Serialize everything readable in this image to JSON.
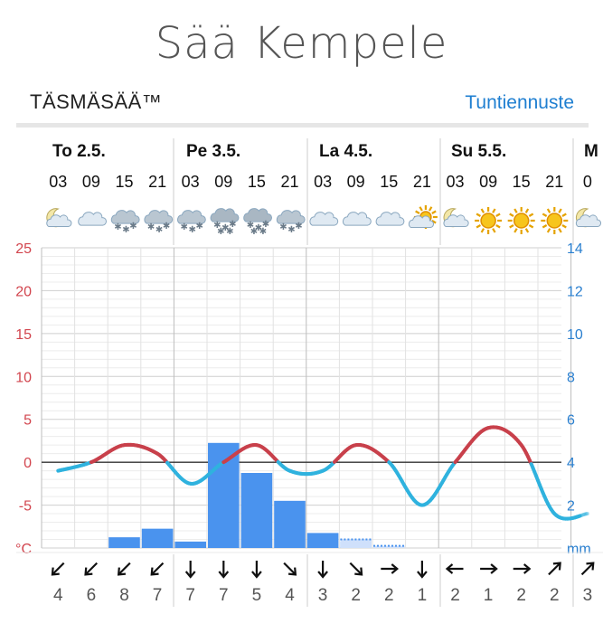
{
  "header": {
    "title": "Sää Kempele",
    "brand": "TÄSMÄSÄÄ™",
    "hourly_link": "Tuntiennuste"
  },
  "colors": {
    "temp_positive": "#c8404b",
    "temp_negative": "#2fb2de",
    "precip_bar": "#4a93ee",
    "link": "#1f7fd1",
    "temp_axis": "#d2454e",
    "precip_axis": "#2a7fcf"
  },
  "days": [
    {
      "label": "To 2.5.",
      "hours": [
        "03",
        "09",
        "15",
        "21"
      ]
    },
    {
      "label": "Pe 3.5.",
      "hours": [
        "03",
        "09",
        "15",
        "21"
      ]
    },
    {
      "label": "La 4.5.",
      "hours": [
        "03",
        "09",
        "15",
        "21"
      ]
    },
    {
      "label": "Su 5.5.",
      "hours": [
        "03",
        "09",
        "15",
        "21"
      ]
    },
    {
      "label": "M",
      "hours": [
        "0"
      ]
    }
  ],
  "weather_icons": [
    "night-partly-cloudy-icon",
    "cloudy-icon",
    "cloud-snow-icon",
    "cloud-snow-icon",
    "cloud-snow-icon",
    "cloud-heavy-snow-icon",
    "cloud-heavy-snow-icon",
    "cloud-snow-icon",
    "cloudy-icon",
    "cloudy-icon",
    "cloudy-icon",
    "sun-behind-cloud-icon",
    "night-partly-cloudy-icon",
    "sun-icon",
    "sun-icon",
    "sun-icon",
    "night-partly-cloudy-icon"
  ],
  "wind": [
    {
      "direction": "NE",
      "speed": "4"
    },
    {
      "direction": "NE",
      "speed": "6"
    },
    {
      "direction": "NE",
      "speed": "8"
    },
    {
      "direction": "NE",
      "speed": "7"
    },
    {
      "direction": "N",
      "speed": "7"
    },
    {
      "direction": "N",
      "speed": "7"
    },
    {
      "direction": "N",
      "speed": "5"
    },
    {
      "direction": "NW",
      "speed": "4"
    },
    {
      "direction": "N",
      "speed": "3"
    },
    {
      "direction": "NW",
      "speed": "2"
    },
    {
      "direction": "W",
      "speed": "2"
    },
    {
      "direction": "N",
      "speed": "1"
    },
    {
      "direction": "E",
      "speed": "2"
    },
    {
      "direction": "W",
      "speed": "1"
    },
    {
      "direction": "W",
      "speed": "2"
    },
    {
      "direction": "SW",
      "speed": "2"
    },
    {
      "direction": "SW",
      "speed": "3"
    }
  ],
  "chart_data": {
    "type": "line",
    "temp_axis": {
      "ticks": [
        "25",
        "20",
        "15",
        "10",
        "5",
        "0",
        "-5",
        "°C"
      ],
      "values": [
        25,
        20,
        15,
        10,
        5,
        0,
        -5,
        -10
      ],
      "ylim": [
        -10,
        25
      ]
    },
    "precip_axis": {
      "ticks": [
        "14",
        "12",
        "10",
        "8",
        "6",
        "4",
        "2",
        "mm"
      ],
      "values": [
        14,
        12,
        10,
        8,
        6,
        4,
        2,
        0
      ],
      "ylim": [
        0,
        14
      ]
    },
    "temperature_x_hours": [
      0,
      6,
      12,
      18,
      24,
      30,
      36,
      42,
      48,
      54,
      60,
      66,
      72,
      78,
      84,
      90,
      96
    ],
    "temperature": [
      -1,
      0,
      2,
      1,
      -2.5,
      0,
      2,
      -1,
      -1,
      2,
      0,
      -5,
      0,
      4,
      2,
      -6,
      -6
    ],
    "precipitation_mm": [
      0,
      0,
      0.5,
      0.9,
      0.3,
      4.9,
      3.5,
      2.2,
      0.7,
      0.3,
      0,
      0,
      0,
      0,
      0,
      0
    ],
    "precipitation_light": [
      0,
      0,
      0,
      0,
      0,
      0,
      0,
      0,
      0,
      0.4,
      0.1,
      0,
      0,
      0,
      0,
      0
    ]
  }
}
